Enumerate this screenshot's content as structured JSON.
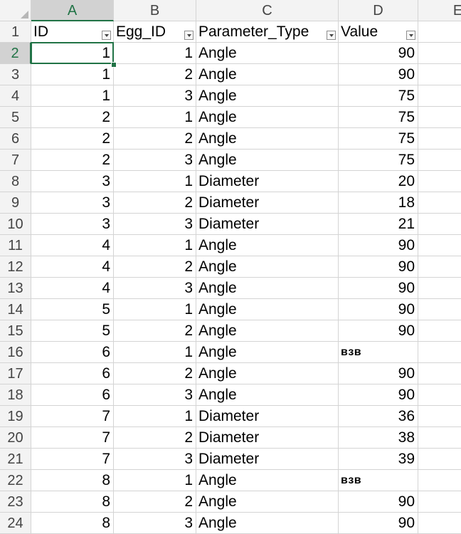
{
  "column_headers": [
    "A",
    "B",
    "C",
    "D",
    "E"
  ],
  "active_column": "A",
  "active_row": "2",
  "table_headers": [
    "ID",
    "Egg_ID",
    "Parameter_Type",
    "Value"
  ],
  "header_row_number": "1",
  "rows": [
    {
      "row": "2",
      "id": "1",
      "egg_id": "1",
      "type": "Angle",
      "value": "90"
    },
    {
      "row": "3",
      "id": "1",
      "egg_id": "2",
      "type": "Angle",
      "value": "90"
    },
    {
      "row": "4",
      "id": "1",
      "egg_id": "3",
      "type": "Angle",
      "value": "75"
    },
    {
      "row": "5",
      "id": "2",
      "egg_id": "1",
      "type": "Angle",
      "value": "75"
    },
    {
      "row": "6",
      "id": "2",
      "egg_id": "2",
      "type": "Angle",
      "value": "75"
    },
    {
      "row": "7",
      "id": "2",
      "egg_id": "3",
      "type": "Angle",
      "value": "75"
    },
    {
      "row": "8",
      "id": "3",
      "egg_id": "1",
      "type": "Diameter",
      "value": "20"
    },
    {
      "row": "9",
      "id": "3",
      "egg_id": "2",
      "type": "Diameter",
      "value": "18"
    },
    {
      "row": "10",
      "id": "3",
      "egg_id": "3",
      "type": "Diameter",
      "value": "21"
    },
    {
      "row": "11",
      "id": "4",
      "egg_id": "1",
      "type": "Angle",
      "value": "90"
    },
    {
      "row": "12",
      "id": "4",
      "egg_id": "2",
      "type": "Angle",
      "value": "90"
    },
    {
      "row": "13",
      "id": "4",
      "egg_id": "3",
      "type": "Angle",
      "value": "90"
    },
    {
      "row": "14",
      "id": "5",
      "egg_id": "1",
      "type": "Angle",
      "value": "90"
    },
    {
      "row": "15",
      "id": "5",
      "egg_id": "2",
      "type": "Angle",
      "value": "90"
    },
    {
      "row": "16",
      "id": "6",
      "egg_id": "1",
      "type": "Angle",
      "value": "взв"
    },
    {
      "row": "17",
      "id": "6",
      "egg_id": "2",
      "type": "Angle",
      "value": "90"
    },
    {
      "row": "18",
      "id": "6",
      "egg_id": "3",
      "type": "Angle",
      "value": "90"
    },
    {
      "row": "19",
      "id": "7",
      "egg_id": "1",
      "type": "Diameter",
      "value": "36"
    },
    {
      "row": "20",
      "id": "7",
      "egg_id": "2",
      "type": "Diameter",
      "value": "38"
    },
    {
      "row": "21",
      "id": "7",
      "egg_id": "3",
      "type": "Diameter",
      "value": "39"
    },
    {
      "row": "22",
      "id": "8",
      "egg_id": "1",
      "type": "Angle",
      "value": "взв"
    },
    {
      "row": "23",
      "id": "8",
      "egg_id": "2",
      "type": "Angle",
      "value": "90"
    },
    {
      "row": "24",
      "id": "8",
      "egg_id": "3",
      "type": "Angle",
      "value": "90"
    }
  ],
  "colors": {
    "accent": "#217346",
    "header_bg": "#f3f3f3",
    "active_header_bg": "#d2d2d2",
    "gridline": "#d4d4d4"
  }
}
